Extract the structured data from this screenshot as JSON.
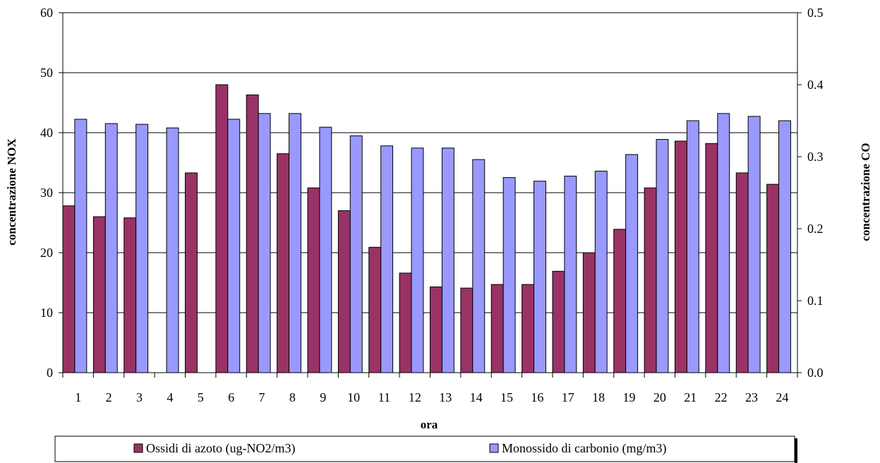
{
  "chart_data": {
    "type": "bar",
    "categories": [
      "1",
      "2",
      "3",
      "4",
      "5",
      "6",
      "7",
      "8",
      "9",
      "10",
      "11",
      "12",
      "13",
      "14",
      "15",
      "16",
      "17",
      "18",
      "19",
      "20",
      "21",
      "22",
      "23",
      "24"
    ],
    "series": [
      {
        "name": "Ossidi di azoto (ug-NO2/m3)",
        "axis": "left",
        "color": "#993366",
        "values": [
          27.8,
          26.0,
          25.8,
          null,
          33.3,
          48.0,
          46.3,
          36.5,
          30.8,
          27.0,
          20.9,
          16.6,
          14.3,
          14.1,
          14.7,
          14.7,
          16.9,
          20.0,
          23.9,
          30.8,
          38.6,
          38.2,
          33.3,
          31.4
        ]
      },
      {
        "name": "Monossido di carbonio (mg/m3)",
        "axis": "right",
        "color": "#9999ff",
        "values": [
          0.352,
          0.346,
          0.345,
          0.34,
          null,
          0.352,
          0.36,
          0.36,
          0.341,
          0.329,
          0.315,
          0.312,
          0.312,
          0.296,
          0.271,
          0.266,
          0.273,
          0.28,
          0.303,
          0.324,
          0.35,
          0.36,
          0.356,
          0.35
        ]
      }
    ],
    "xlabel": "ora",
    "ylabel_left": "concentrazione NOX",
    "ylabel_right": "concentrazione CO",
    "ylim_left": [
      0,
      60
    ],
    "ylim_right": [
      0,
      0.5
    ],
    "yticks_left": [
      "0",
      "10",
      "20",
      "30",
      "40",
      "50",
      "60"
    ],
    "yticks_right": [
      "0.0",
      "0.1",
      "0.2",
      "0.3",
      "0.4",
      "0.5"
    ],
    "grid": true,
    "legend_position": "bottom"
  }
}
